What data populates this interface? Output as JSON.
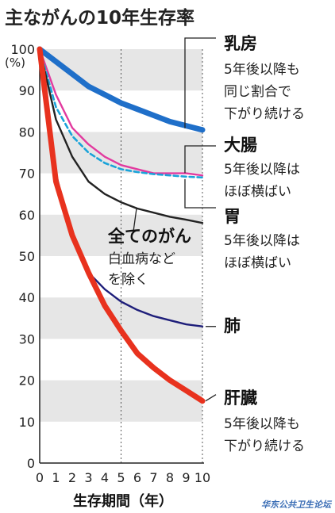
{
  "chart_data": {
    "type": "line",
    "title": "主ながんの10年生存率",
    "xlabel": "生存期間（年）",
    "ylabel": "(%)",
    "x": [
      0,
      1,
      2,
      3,
      4,
      5,
      6,
      7,
      8,
      9,
      10
    ],
    "xlim": [
      0,
      10
    ],
    "ylim": [
      0,
      100
    ],
    "yticks": [
      0,
      10,
      20,
      30,
      40,
      50,
      60,
      70,
      80,
      90,
      100
    ],
    "grid": "horizontal bands",
    "series": [
      {
        "name": "乳房",
        "color": "#1f6fc9",
        "style": "solid-thick",
        "values": [
          100,
          97,
          94,
          91,
          89,
          87,
          85.5,
          84,
          82.5,
          81.5,
          80.5
        ]
      },
      {
        "name": "大腸",
        "color": "#e23a9f",
        "style": "solid",
        "values": [
          100,
          89,
          81,
          77,
          74,
          72,
          71,
          70,
          70,
          70,
          69.5
        ]
      },
      {
        "name": "胃",
        "color": "#1aa3d9",
        "style": "dashed",
        "values": [
          100,
          86,
          79,
          75,
          72.5,
          71,
          70.3,
          69.8,
          69.5,
          69.2,
          69
        ]
      },
      {
        "name": "全てのがん",
        "color": "#222222",
        "style": "solid",
        "values": [
          100,
          83,
          74,
          68,
          65,
          63,
          61.5,
          60.5,
          59.5,
          58.8,
          58
        ]
      },
      {
        "name": "肺",
        "color": "#1e1e7a",
        "style": "solid",
        "values": [
          100,
          70,
          54,
          46,
          42,
          39,
          37,
          35.5,
          34.5,
          33.5,
          33
        ]
      },
      {
        "name": "肝臓",
        "color": "#e8321e",
        "style": "solid-thick",
        "values": [
          100,
          68,
          55,
          46,
          38,
          32,
          26.5,
          23,
          20,
          17.5,
          15
        ]
      }
    ],
    "annotations": {
      "breast": {
        "label": "乳房",
        "lines": [
          "5年後以降も",
          "同じ割合で",
          "下がり続ける"
        ]
      },
      "colon": {
        "label": "大腸",
        "lines": [
          "5年後以降は",
          "ほぼ横ばい"
        ]
      },
      "stomach": {
        "label": "胃",
        "lines": [
          "5年後以降は",
          "ほぼ横ばい"
        ]
      },
      "all": {
        "label": "全てのがん",
        "lines": [
          "白血病など",
          "を除く"
        ]
      },
      "lung": {
        "label": "肺"
      },
      "liver": {
        "label": "肝臓",
        "lines": [
          "5年後以降も",
          "下がり続ける"
        ]
      }
    },
    "vlines_at_x": [
      5,
      10
    ]
  },
  "watermark": "华东公共卫生论坛"
}
